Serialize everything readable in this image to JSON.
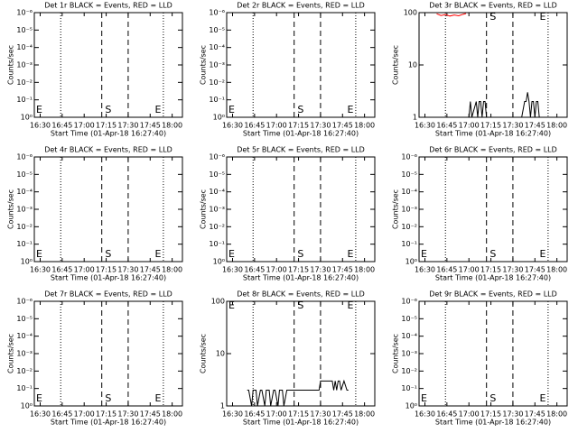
{
  "chart_data": [
    {
      "type": "line",
      "title": "Det 1r BLACK = Events, RED = LLD",
      "xlabel": "Start Time (01-Apr-18 16:27:40)",
      "ylabel": "Counts/sec",
      "log_y": true,
      "xlim": [
        "16:26",
        "18:07"
      ],
      "xticks": [
        "16:30",
        "16:45",
        "17:00",
        "17:15",
        "17:30",
        "17:45",
        "18:00"
      ],
      "ylim": [
        1,
        1e-06
      ],
      "yticks": [
        {
          "value": 1,
          "label": "10⁰"
        },
        {
          "value": 0.1,
          "label": "10⁻¹"
        },
        {
          "value": 0.01,
          "label": "10⁻²"
        },
        {
          "value": 0.001,
          "label": "10⁻³"
        },
        {
          "value": 0.0001,
          "label": "10⁻⁴"
        },
        {
          "value": 1e-05,
          "label": "10⁻⁵"
        },
        {
          "value": 1e-06,
          "label": "10⁻⁶"
        }
      ],
      "markers": [
        {
          "x": "16:44",
          "style": "dotted"
        },
        {
          "x": "17:12",
          "style": "dashed"
        },
        {
          "x": "17:30",
          "style": "dashed"
        },
        {
          "x": "17:54",
          "style": "dotted"
        }
      ],
      "annotations": [
        {
          "text": "E",
          "x": "16:26"
        },
        {
          "text": "S",
          "x": "17:13"
        },
        {
          "text": "E",
          "x": "17:47"
        }
      ],
      "series": []
    },
    {
      "type": "line",
      "title": "Det 2r BLACK = Events, RED = LLD",
      "xlabel": "Start Time (01-Apr-18 16:27:40)",
      "ylabel": "Counts/sec",
      "log_y": true,
      "xlim": [
        "16:26",
        "18:07"
      ],
      "xticks": [
        "16:30",
        "16:45",
        "17:00",
        "17:15",
        "17:30",
        "17:45",
        "18:00"
      ],
      "ylim": [
        1,
        1e-06
      ],
      "yticks": [
        {
          "value": 1,
          "label": "10⁰"
        },
        {
          "value": 0.1,
          "label": "10⁻¹"
        },
        {
          "value": 0.01,
          "label": "10⁻²"
        },
        {
          "value": 0.001,
          "label": "10⁻³"
        },
        {
          "value": 0.0001,
          "label": "10⁻⁴"
        },
        {
          "value": 1e-05,
          "label": "10⁻⁵"
        },
        {
          "value": 1e-06,
          "label": "10⁻⁶"
        }
      ],
      "markers": [
        {
          "x": "16:44",
          "style": "dotted"
        },
        {
          "x": "17:12",
          "style": "dashed"
        },
        {
          "x": "17:30",
          "style": "dashed"
        },
        {
          "x": "17:54",
          "style": "dotted"
        }
      ],
      "annotations": [
        {
          "text": "E",
          "x": "16:26"
        },
        {
          "text": "S",
          "x": "17:13"
        },
        {
          "text": "E",
          "x": "17:47"
        }
      ],
      "series": []
    },
    {
      "type": "line",
      "title": "Det 3r BLACK = Events, RED = LLD",
      "xlabel": "Start Time (01-Apr-18 16:27:40)",
      "ylabel": "Counts/sec",
      "log_y": true,
      "xlim": [
        "16:26",
        "18:07"
      ],
      "xticks": [
        "16:30",
        "16:45",
        "17:00",
        "17:15",
        "17:30",
        "17:45",
        "18:00"
      ],
      "ylim": [
        1,
        100
      ],
      "yticks": [
        1,
        10,
        100
      ],
      "markers": [
        {
          "x": "16:44",
          "style": "dotted"
        },
        {
          "x": "17:12",
          "style": "dashed"
        },
        {
          "x": "17:30",
          "style": "dashed"
        },
        {
          "x": "17:54",
          "style": "dotted"
        }
      ],
      "annotations": [
        {
          "text": "S",
          "x": "17:13"
        },
        {
          "text": "E",
          "x": "17:47"
        }
      ],
      "series": [
        {
          "color": "#000000",
          "x": [
            "16:58",
            "17:00",
            "17:01",
            "17:02",
            "17:05",
            "17:06",
            "17:07",
            "17:08",
            "17:09",
            "17:10",
            "17:11",
            "17:12",
            "17:36",
            "17:38",
            "17:39",
            "17:40",
            "17:41",
            "17:42",
            "17:43",
            "17:44",
            "17:45",
            "17:46",
            "17:47",
            "17:48"
          ],
          "values": [
            1,
            1,
            2,
            1,
            2,
            1,
            2,
            2,
            1,
            2,
            2,
            1,
            1,
            2,
            2,
            3,
            2,
            1,
            2,
            2,
            1,
            2,
            2,
            1
          ]
        },
        {
          "color": "#ff0000",
          "x": [
            "16:38",
            "16:41",
            "16:44",
            "16:47",
            "16:50",
            "16:53",
            "16:56",
            "16:58"
          ],
          "values": [
            95,
            88,
            92,
            86,
            90,
            87,
            93,
            96
          ]
        }
      ]
    },
    {
      "type": "line",
      "title": "Det 4r BLACK = Events, RED = LLD",
      "xlabel": "Start Time (01-Apr-18 16:27:40)",
      "ylabel": "Counts/sec",
      "log_y": true,
      "xlim": [
        "16:26",
        "18:07"
      ],
      "xticks": [
        "16:30",
        "16:45",
        "17:00",
        "17:15",
        "17:30",
        "17:45",
        "18:00"
      ],
      "ylim": [
        1,
        1e-06
      ],
      "yticks": [
        {
          "value": 1,
          "label": "10⁰"
        },
        {
          "value": 0.1,
          "label": "10⁻¹"
        },
        {
          "value": 0.01,
          "label": "10⁻²"
        },
        {
          "value": 0.001,
          "label": "10⁻³"
        },
        {
          "value": 0.0001,
          "label": "10⁻⁴"
        },
        {
          "value": 1e-05,
          "label": "10⁻⁵"
        },
        {
          "value": 1e-06,
          "label": "10⁻⁶"
        }
      ],
      "markers": [
        {
          "x": "16:44",
          "style": "dotted"
        },
        {
          "x": "17:12",
          "style": "dashed"
        },
        {
          "x": "17:30",
          "style": "dashed"
        },
        {
          "x": "17:54",
          "style": "dotted"
        }
      ],
      "annotations": [
        {
          "text": "E",
          "x": "16:26"
        },
        {
          "text": "S",
          "x": "17:13"
        },
        {
          "text": "E",
          "x": "17:47"
        }
      ],
      "series": []
    },
    {
      "type": "line",
      "title": "Det 5r BLACK = Events, RED = LLD",
      "xlabel": "Start Time (01-Apr-18 16:27:40)",
      "ylabel": "Counts/sec",
      "log_y": true,
      "xlim": [
        "16:26",
        "18:07"
      ],
      "xticks": [
        "16:30",
        "16:45",
        "17:00",
        "17:15",
        "17:30",
        "17:45",
        "18:00"
      ],
      "ylim": [
        1,
        1e-06
      ],
      "yticks": [
        {
          "value": 1,
          "label": "10⁰"
        },
        {
          "value": 0.1,
          "label": "10⁻¹"
        },
        {
          "value": 0.01,
          "label": "10⁻²"
        },
        {
          "value": 0.001,
          "label": "10⁻³"
        },
        {
          "value": 0.0001,
          "label": "10⁻⁴"
        },
        {
          "value": 1e-05,
          "label": "10⁻⁵"
        },
        {
          "value": 1e-06,
          "label": "10⁻⁶"
        }
      ],
      "markers": [
        {
          "x": "16:44",
          "style": "dotted"
        },
        {
          "x": "17:12",
          "style": "dashed"
        },
        {
          "x": "17:30",
          "style": "dashed"
        },
        {
          "x": "17:54",
          "style": "dotted"
        }
      ],
      "annotations": [
        {
          "text": "E",
          "x": "16:26"
        },
        {
          "text": "S",
          "x": "17:13"
        },
        {
          "text": "E",
          "x": "17:47"
        }
      ],
      "series": []
    },
    {
      "type": "line",
      "title": "Det 6r BLACK = Events, RED = LLD",
      "xlabel": "Start Time (01-Apr-18 16:27:40)",
      "ylabel": "Counts/sec",
      "log_y": true,
      "xlim": [
        "16:26",
        "18:07"
      ],
      "xticks": [
        "16:30",
        "16:45",
        "17:00",
        "17:15",
        "17:30",
        "17:45",
        "18:00"
      ],
      "ylim": [
        1,
        1e-06
      ],
      "yticks": [
        {
          "value": 1,
          "label": "10⁰"
        },
        {
          "value": 0.1,
          "label": "10⁻¹"
        },
        {
          "value": 0.01,
          "label": "10⁻²"
        },
        {
          "value": 0.001,
          "label": "10⁻³"
        },
        {
          "value": 0.0001,
          "label": "10⁻⁴"
        },
        {
          "value": 1e-05,
          "label": "10⁻⁵"
        },
        {
          "value": 1e-06,
          "label": "10⁻⁶"
        }
      ],
      "markers": [
        {
          "x": "16:44",
          "style": "dotted"
        },
        {
          "x": "17:12",
          "style": "dashed"
        },
        {
          "x": "17:30",
          "style": "dashed"
        },
        {
          "x": "17:54",
          "style": "dotted"
        }
      ],
      "annotations": [
        {
          "text": "E",
          "x": "16:26"
        },
        {
          "text": "S",
          "x": "17:13"
        },
        {
          "text": "E",
          "x": "17:47"
        }
      ],
      "series": []
    },
    {
      "type": "line",
      "title": "Det 7r BLACK = Events, RED = LLD",
      "xlabel": "Start Time (01-Apr-18 16:27:40)",
      "ylabel": "Counts/sec",
      "log_y": true,
      "xlim": [
        "16:26",
        "18:07"
      ],
      "xticks": [
        "16:30",
        "16:45",
        "17:00",
        "17:15",
        "17:30",
        "17:45",
        "18:00"
      ],
      "ylim": [
        1,
        1e-06
      ],
      "yticks": [
        {
          "value": 1,
          "label": "10⁰"
        },
        {
          "value": 0.1,
          "label": "10⁻¹"
        },
        {
          "value": 0.01,
          "label": "10⁻²"
        },
        {
          "value": 0.001,
          "label": "10⁻³"
        },
        {
          "value": 0.0001,
          "label": "10⁻⁴"
        },
        {
          "value": 1e-05,
          "label": "10⁻⁵"
        },
        {
          "value": 1e-06,
          "label": "10⁻⁶"
        }
      ],
      "markers": [
        {
          "x": "16:44",
          "style": "dotted"
        },
        {
          "x": "17:12",
          "style": "dashed"
        },
        {
          "x": "17:30",
          "style": "dashed"
        },
        {
          "x": "17:54",
          "style": "dotted"
        }
      ],
      "annotations": [
        {
          "text": "E",
          "x": "16:26"
        },
        {
          "text": "S",
          "x": "17:13"
        },
        {
          "text": "E",
          "x": "17:47"
        }
      ],
      "series": []
    },
    {
      "type": "line",
      "title": "Det 8r BLACK = Events, RED = LLD",
      "xlabel": "Start Time (01-Apr-18 16:27:40)",
      "ylabel": "Counts/sec",
      "log_y": true,
      "xlim": [
        "16:26",
        "18:07"
      ],
      "xticks": [
        "16:30",
        "16:45",
        "17:00",
        "17:15",
        "17:30",
        "17:45",
        "18:00"
      ],
      "ylim": [
        1,
        100
      ],
      "yticks": [
        1,
        10,
        100
      ],
      "markers": [
        {
          "x": "16:44",
          "style": "dotted"
        },
        {
          "x": "17:12",
          "style": "dashed"
        },
        {
          "x": "17:30",
          "style": "dashed"
        },
        {
          "x": "17:54",
          "style": "dotted"
        }
      ],
      "annotations": [
        {
          "text": "E",
          "x": "16:26"
        },
        {
          "text": "S",
          "x": "17:13"
        },
        {
          "text": "E",
          "x": "17:47"
        }
      ],
      "series": [
        {
          "color": "#000000",
          "x": [
            "16:40",
            "16:41",
            "16:43",
            "16:44",
            "16:46",
            "16:47",
            "16:49",
            "16:50",
            "16:52",
            "16:53",
            "16:55",
            "16:56",
            "16:58",
            "16:59",
            "17:01",
            "17:02",
            "17:04",
            "17:05",
            "17:07",
            "17:08",
            "17:10",
            "17:12",
            "17:29",
            "17:30",
            "17:32",
            "17:34",
            "17:36",
            "17:38",
            "17:39",
            "17:40",
            "17:41",
            "17:42",
            "17:43",
            "17:44",
            "17:46",
            "17:48",
            "17:49"
          ],
          "values": [
            2,
            2,
            1,
            2,
            2,
            1,
            2,
            2,
            1,
            2,
            2,
            1,
            2,
            2,
            1,
            2,
            2,
            1,
            2,
            2,
            2,
            2,
            2,
            3,
            3,
            3,
            3,
            3,
            2,
            3,
            2,
            3,
            3,
            2,
            3,
            2,
            2
          ]
        }
      ]
    },
    {
      "type": "line",
      "title": "Det 9r BLACK = Events, RED = LLD",
      "xlabel": "Start Time (01-Apr-18 16:27:40)",
      "ylabel": "Counts/sec",
      "log_y": true,
      "xlim": [
        "16:26",
        "18:07"
      ],
      "xticks": [
        "16:30",
        "16:45",
        "17:00",
        "17:15",
        "17:30",
        "17:45",
        "18:00"
      ],
      "ylim": [
        1,
        1e-06
      ],
      "yticks": [
        {
          "value": 1,
          "label": "10⁰"
        },
        {
          "value": 0.1,
          "label": "10⁻¹"
        },
        {
          "value": 0.01,
          "label": "10⁻²"
        },
        {
          "value": 0.001,
          "label": "10⁻³"
        },
        {
          "value": 0.0001,
          "label": "10⁻⁴"
        },
        {
          "value": 1e-05,
          "label": "10⁻⁵"
        },
        {
          "value": 1e-06,
          "label": "10⁻⁶"
        }
      ],
      "markers": [
        {
          "x": "16:44",
          "style": "dotted"
        },
        {
          "x": "17:12",
          "style": "dashed"
        },
        {
          "x": "17:30",
          "style": "dashed"
        },
        {
          "x": "17:54",
          "style": "dotted"
        }
      ],
      "annotations": [
        {
          "text": "E",
          "x": "16:26"
        },
        {
          "text": "S",
          "x": "17:13"
        },
        {
          "text": "E",
          "x": "17:47"
        }
      ],
      "series": []
    }
  ]
}
